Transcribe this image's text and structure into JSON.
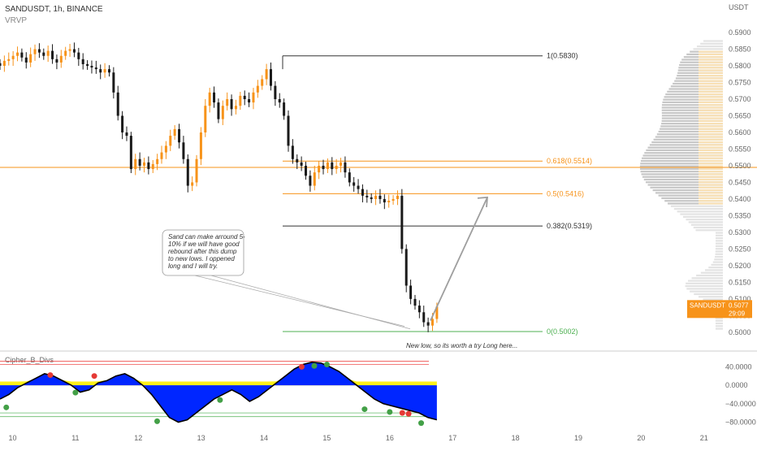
{
  "header": {
    "symbol": "SANDUSDT, 1h, BINANCE",
    "indicator": "VRVP",
    "currency": "USDT"
  },
  "price_badge": {
    "symbol": "SANDUSDT",
    "price": "0.5077",
    "timer": "29:09",
    "color": "#f7931a"
  },
  "colors": {
    "up": "#f7931a",
    "down": "#1a1a1a",
    "fib": "#f7931a",
    "fib_gray": "#333333",
    "fib_zero": "#4caf50",
    "vp": "#d9d9d9",
    "vp_value": "#fde2b3",
    "osc_fill": "#0026ff",
    "osc_yellow": "#ffee00",
    "arrow": "#9e9e9e"
  },
  "price_axis": [
    "0.5900",
    "0.5850",
    "0.5800",
    "0.5750",
    "0.5700",
    "0.5650",
    "0.5600",
    "0.5550",
    "0.5500",
    "0.5450",
    "0.5400",
    "0.5350",
    "0.5300",
    "0.5250",
    "0.5200",
    "0.5150",
    "0.5100",
    "0.5050",
    "0.5000"
  ],
  "time_axis": [
    "10",
    "11",
    "12",
    "13",
    "14",
    "15",
    "16",
    "17",
    "18",
    "19",
    "20",
    "21"
  ],
  "osc_axis": [
    "40.0000",
    "0.0000",
    "−40.0000",
    "−80.0000"
  ],
  "osc_title": "Cipher_B_Divs",
  "fib_levels": [
    {
      "label": "1(0.5830)",
      "price": 0.583
    },
    {
      "label": "0.618(0.5514)",
      "price": 0.5514
    },
    {
      "label": "0.5(0.5416)",
      "price": 0.5416
    },
    {
      "label": "0.382(0.5319)",
      "price": 0.5319
    },
    {
      "label": "0(0.5002)",
      "price": 0.5002
    }
  ],
  "annotation": {
    "lines": [
      "Sand can make arround 5-",
      "10% if we will have good",
      "rebound after this dump",
      "to new lows. I oppened",
      "long and I will try."
    ]
  },
  "footnote": "New low, so its worth a try Long here...",
  "chart_data": {
    "type": "candlestick",
    "ylim": [
      0.4985,
      0.5905
    ],
    "xlim": [
      9.8,
      21.3
    ],
    "horizontal_line": 0.5495,
    "close_series": [
      0.58,
      0.5815,
      0.582,
      0.583,
      0.584,
      0.5825,
      0.581,
      0.5835,
      0.585,
      0.584,
      0.583,
      0.5845,
      0.582,
      0.581,
      0.583,
      0.5845,
      0.585,
      0.584,
      0.582,
      0.5805,
      0.58,
      0.5795,
      0.579,
      0.578,
      0.579,
      0.578,
      0.572,
      0.565,
      0.56,
      0.559,
      0.549,
      0.552,
      0.55,
      0.551,
      0.549,
      0.5505,
      0.552,
      0.554,
      0.556,
      0.559,
      0.561,
      0.557,
      0.552,
      0.544,
      0.545,
      0.552,
      0.56,
      0.568,
      0.572,
      0.569,
      0.564,
      0.568,
      0.57,
      0.567,
      0.568,
      0.571,
      0.57,
      0.569,
      0.572,
      0.574,
      0.576,
      0.579,
      0.574,
      0.57,
      0.569,
      0.565,
      0.556,
      0.552,
      0.551,
      0.55,
      0.547,
      0.544,
      0.548,
      0.55,
      0.549,
      0.551,
      0.549,
      0.55,
      0.551,
      0.548,
      0.545,
      0.544,
      0.543,
      0.541,
      0.5405,
      0.54,
      0.541,
      0.54,
      0.539,
      0.5395,
      0.54,
      0.541,
      0.525,
      0.514,
      0.51,
      0.508,
      0.506,
      0.503,
      0.502,
      0.504,
      0.5077
    ],
    "price_candles_x_start": 9.8,
    "price_candles_x_end": 16.75,
    "osc_ylim": [
      -95,
      60
    ],
    "oscillator": {
      "wave": [
        -30,
        -20,
        -5,
        5,
        15,
        25,
        20,
        10,
        0,
        -15,
        -10,
        5,
        10,
        20,
        25,
        15,
        0,
        -20,
        -45,
        -70,
        -80,
        -75,
        -60,
        -45,
        -30,
        -20,
        -10,
        -20,
        -35,
        -25,
        -10,
        5,
        20,
        35,
        45,
        50,
        48,
        40,
        30,
        15,
        0,
        -15,
        -30,
        -40,
        -45,
        -50,
        -55,
        -60,
        -70,
        -75
      ],
      "dots_red": [
        [
          10.6,
          22
        ],
        [
          11.3,
          20
        ],
        [
          14.6,
          40
        ],
        [
          16.2,
          -60
        ],
        [
          16.3,
          -62
        ]
      ],
      "dots_green": [
        [
          9.9,
          -48
        ],
        [
          11.0,
          -16
        ],
        [
          12.3,
          -78
        ],
        [
          13.3,
          -32
        ],
        [
          14.8,
          42
        ],
        [
          15.0,
          45
        ],
        [
          15.6,
          -52
        ],
        [
          16.0,
          -58
        ],
        [
          16.5,
          -82
        ]
      ]
    }
  }
}
